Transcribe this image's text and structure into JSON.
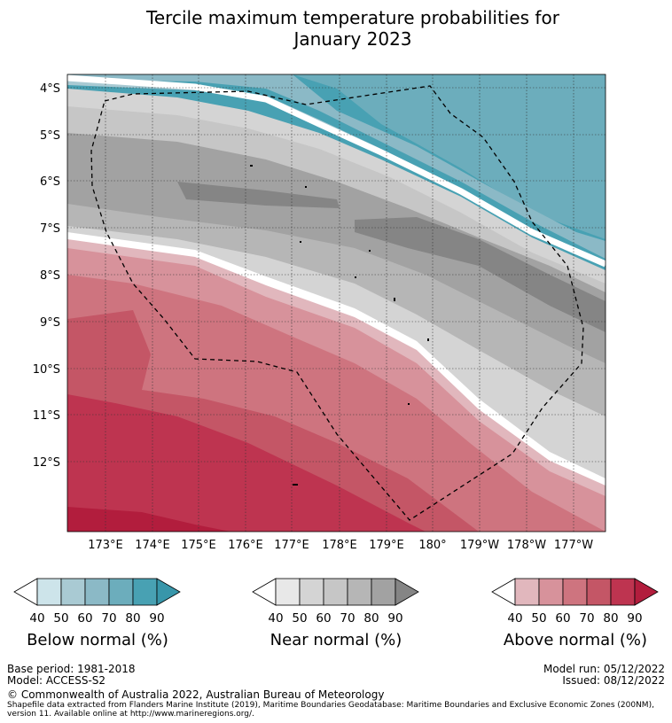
{
  "title_line1": "Tercile maximum temperature probabilities for",
  "title_line2": "January 2023",
  "lat_labels": [
    "4°S",
    "5°S",
    "6°S",
    "7°S",
    "8°S",
    "9°S",
    "10°S",
    "11°S",
    "12°S"
  ],
  "lon_labels": [
    "173°E",
    "174°E",
    "175°E",
    "176°E",
    "177°E",
    "178°E",
    "179°E",
    "180°",
    "179°W",
    "178°W",
    "177°W"
  ],
  "colorbars": [
    {
      "title": "Below normal (%)",
      "ticks": [
        "40",
        "50",
        "60",
        "70",
        "80",
        "90"
      ],
      "colors": [
        "#ffffff",
        "#cde4ea",
        "#a9cad3",
        "#8bb9c6",
        "#6cadbc",
        "#48a1b3",
        "#3896aa"
      ]
    },
    {
      "title": "Near normal (%)",
      "ticks": [
        "40",
        "50",
        "60",
        "70",
        "80",
        "90"
      ],
      "colors": [
        "#ffffff",
        "#e8e8e8",
        "#d4d4d4",
        "#c6c6c6",
        "#b6b6b6",
        "#a2a2a2",
        "#858585"
      ]
    },
    {
      "title": "Above normal (%)",
      "ticks": [
        "40",
        "50",
        "60",
        "70",
        "80",
        "90"
      ],
      "colors": [
        "#ffffff",
        "#e1b7bd",
        "#d7929b",
        "#ce747f",
        "#c45666",
        "#be3450",
        "#b21d3d"
      ]
    }
  ],
  "footer": {
    "base_period": "Base period: 1981-2018",
    "model": "Model: ACCESS-S2",
    "model_run": "Model run: 05/12/2022",
    "issued": "Issued: 08/12/2022",
    "copyright": "© Commonwealth of Australia 2022, Australian Bureau of Meteorology",
    "shapefile_line1": "Shapefile data extracted from Flanders Marine Institute (2019), Maritime Boundaries Geodatabase: Maritime Boundaries and Exclusive Economic Zones (200NM),",
    "shapefile_line2": "version 11. Available online at http://www.marineregions.org/."
  }
}
